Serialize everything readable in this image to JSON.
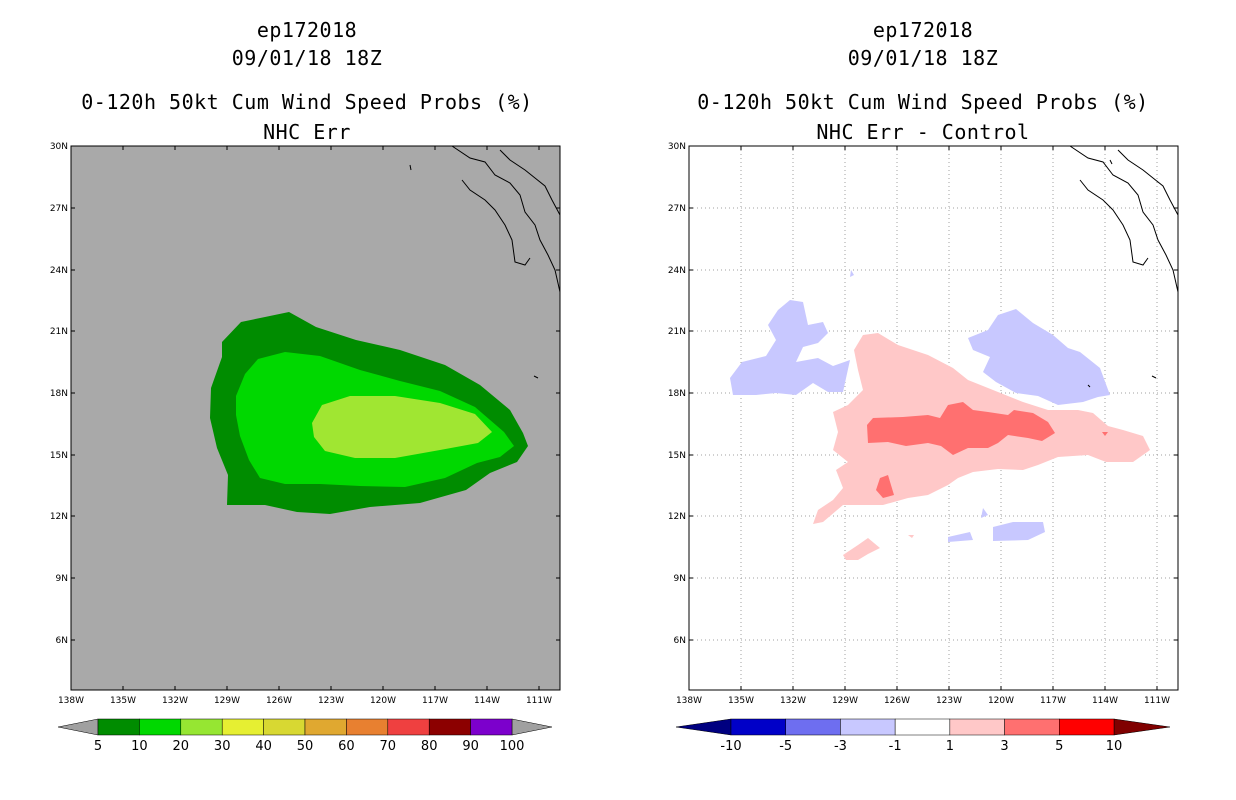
{
  "panels": [
    {
      "id": "left",
      "title_line1": "ep172018",
      "title_line2": "09/01/18 18Z",
      "title_line3": "0-120h 50kt Cum Wind Speed Probs (%)",
      "title_line4": "NHC Err",
      "background_color": "#a9a9a9",
      "colorbar_labels": [
        "5",
        "10",
        "20",
        "30",
        "40",
        "50",
        "60",
        "70",
        "80",
        "90",
        "100"
      ],
      "colorbar_colors": [
        "#008c00",
        "#00d800",
        "#96e632",
        "#e6ef32",
        "#d8d832",
        "#e0a830",
        "#e88030",
        "#ef4040",
        "#8c0000",
        "#7c00cc"
      ]
    },
    {
      "id": "right",
      "title_line1": "ep172018",
      "title_line2": "09/01/18 18Z",
      "title_line3": "0-120h 50kt Cum Wind Speed Probs (%)",
      "title_line4": "NHC Err - Control",
      "background_color": "#ffffff",
      "colorbar_labels": [
        "-10",
        "-5",
        "-3",
        "-1",
        "1",
        "3",
        "5",
        "10"
      ],
      "colorbar_colors": [
        "#0000c8",
        "#6e6ef0",
        "#c8c8ff",
        "#ffffff",
        "#ffc8c8",
        "#ff7070",
        "#ff0000"
      ]
    }
  ],
  "axes": {
    "lat_labels": [
      "30N",
      "27N",
      "24N",
      "21N",
      "18N",
      "15N",
      "12N",
      "9N",
      "6N"
    ],
    "lon_labels": [
      "138W",
      "135W",
      "132W",
      "129W",
      "126W",
      "123W",
      "120W",
      "117W",
      "114W",
      "111W"
    ]
  },
  "legend_colors": {
    "left_low_arrow": "#a0a0a0",
    "left_high_arrow": "#a0a0a0",
    "right_low_arrow": "#000080",
    "right_high_arrow": "#800000"
  }
}
